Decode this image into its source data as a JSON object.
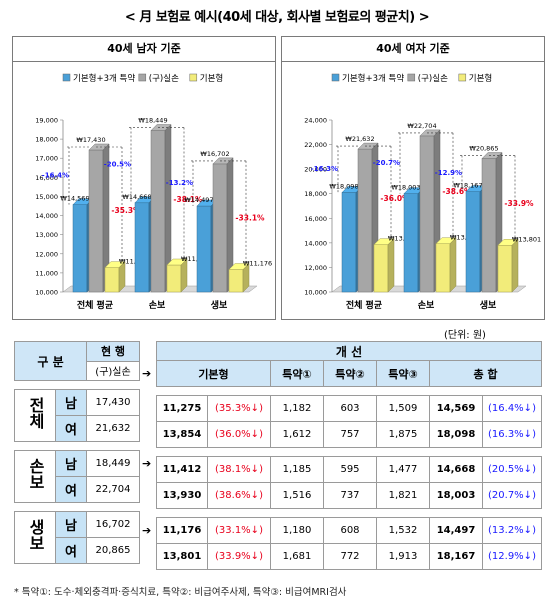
{
  "title": "< 月 보험료 예시(40세 대상, 회사별 보험료의 평균치) >",
  "unit_note": "(단위: 원)",
  "chart_data": [
    {
      "type": "bar",
      "title": "40세 남자 기준",
      "categories": [
        "전체 평균",
        "손보",
        "생보"
      ],
      "series": [
        {
          "name": "기본형+3개 특약",
          "color": "#4aa0d8",
          "values": [
            14569,
            14668,
            14497
          ]
        },
        {
          "name": "(구)실손",
          "color": "#a6a6a6",
          "values": [
            17430,
            18449,
            16702
          ]
        },
        {
          "name": "기본형",
          "color": "#f2ec7a",
          "values": [
            11275,
            11412,
            11176
          ]
        }
      ],
      "value_labels": [
        [
          "₩14,569",
          "₩17,430",
          "₩11,275"
        ],
        [
          "₩14,668",
          "₩18,449",
          "₩11,412"
        ],
        [
          "₩14,497",
          "₩16,702",
          "₩11,176"
        ]
      ],
      "pct_blue": [
        "-16.4%",
        "-20.5%",
        "-13.2%"
      ],
      "pct_red": [
        "-35.3%",
        "-38.1%",
        "-33.1%"
      ],
      "ylim": [
        10000,
        19000
      ],
      "ytick_step": 1000,
      "yticks": [
        "10,000",
        "11,000",
        "12,000",
        "13,000",
        "14,000",
        "15,000",
        "16,000",
        "17,000",
        "18,000",
        "19,000"
      ],
      "legend_position": "top"
    },
    {
      "type": "bar",
      "title": "40세 여자 기준",
      "categories": [
        "전체 평균",
        "손보",
        "생보"
      ],
      "series": [
        {
          "name": "기본형+3개 특약",
          "color": "#4aa0d8",
          "values": [
            18098,
            18003,
            18167
          ]
        },
        {
          "name": "(구)실손",
          "color": "#a6a6a6",
          "values": [
            21632,
            22704,
            20865
          ]
        },
        {
          "name": "기본형",
          "color": "#f2ec7a",
          "values": [
            13854,
            13930,
            13801
          ]
        }
      ],
      "value_labels": [
        [
          "₩18,098",
          "₩21,632",
          "₩13,854"
        ],
        [
          "₩18,003",
          "₩22,704",
          "₩13,930"
        ],
        [
          "₩18,167",
          "₩20,865",
          "₩13,801"
        ]
      ],
      "pct_blue": [
        "-16.3%",
        "-20.7%",
        "-12.9%"
      ],
      "pct_red": [
        "-36.0%",
        "-38.6%",
        "-33.9%"
      ],
      "ylim": [
        10000,
        24000
      ],
      "ytick_step": 2000,
      "yticks": [
        "10,000",
        "12,000",
        "14,000",
        "16,000",
        "18,000",
        "20,000",
        "22,000",
        "24,000"
      ],
      "legend_position": "top"
    }
  ],
  "table": {
    "header1": {
      "group": "구 분",
      "current": "현 행",
      "improve": "개 선"
    },
    "header2": {
      "current_sub": "(구)실손",
      "basic": "기본형",
      "rider1": "특약①",
      "rider2": "특약②",
      "rider3": "특약③",
      "total": "총 합"
    },
    "groups": [
      {
        "name": "전체",
        "rows": [
          {
            "sex": "남",
            "current": "17,430",
            "basic": "11,275",
            "basic_pct": "(35.3%↓)",
            "r1": "1,182",
            "r2": "603",
            "r3": "1,509",
            "total": "14,569",
            "total_pct": "(16.4%↓)"
          },
          {
            "sex": "여",
            "current": "21,632",
            "basic": "13,854",
            "basic_pct": "(36.0%↓)",
            "r1": "1,612",
            "r2": "757",
            "r3": "1,875",
            "total": "18,098",
            "total_pct": "(16.3%↓)"
          }
        ]
      },
      {
        "name": "손보",
        "rows": [
          {
            "sex": "남",
            "current": "18,449",
            "basic": "11,412",
            "basic_pct": "(38.1%↓)",
            "r1": "1,185",
            "r2": "595",
            "r3": "1,477",
            "total": "14,668",
            "total_pct": "(20.5%↓)"
          },
          {
            "sex": "여",
            "current": "22,704",
            "basic": "13,930",
            "basic_pct": "(38.6%↓)",
            "r1": "1,516",
            "r2": "737",
            "r3": "1,821",
            "total": "18,003",
            "total_pct": "(20.7%↓)"
          }
        ]
      },
      {
        "name": "생보",
        "rows": [
          {
            "sex": "남",
            "current": "16,702",
            "basic": "11,176",
            "basic_pct": "(33.1%↓)",
            "r1": "1,180",
            "r2": "608",
            "r3": "1,532",
            "total": "14,497",
            "total_pct": "(13.2%↓)"
          },
          {
            "sex": "여",
            "current": "20,865",
            "basic": "13,801",
            "basic_pct": "(33.9%↓)",
            "r1": "1,681",
            "r2": "772",
            "r3": "1,913",
            "total": "18,167",
            "total_pct": "(12.9%↓)"
          }
        ]
      }
    ],
    "arrow": "➔"
  },
  "footnote": "* 특약①: 도수·체외충격파·증식치료, 특약②: 비급여주사제, 특약③: 비급여MRI검사"
}
